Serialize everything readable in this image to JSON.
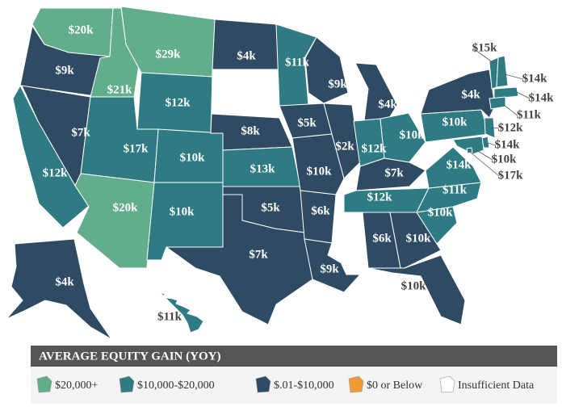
{
  "regions": [
    {
      "label": "$20k",
      "fill": 0
    },
    {
      "label": "$9k",
      "fill": 2
    },
    {
      "label": "$21k",
      "fill": 0
    },
    {
      "label": "$29k",
      "fill": 0
    },
    {
      "label": "$12k",
      "fill": 1
    },
    {
      "label": "$7k",
      "fill": 2
    },
    {
      "label": "$12k",
      "fill": 1
    },
    {
      "label": "$17k",
      "fill": 1
    },
    {
      "label": "$20k",
      "fill": 0
    },
    {
      "label": "$10k",
      "fill": 1
    },
    {
      "label": "$10k",
      "fill": 1
    },
    {
      "label": "$4k",
      "fill": 2
    },
    {
      "fill": 4
    },
    {
      "label": "$8k",
      "fill": 2
    },
    {
      "label": "$13k",
      "fill": 1
    },
    {
      "label": "$5k",
      "fill": 2
    },
    {
      "label": "$7k",
      "fill": 2
    },
    {
      "label": "$11k",
      "fill": 1
    },
    {
      "label": "$5k",
      "fill": 2
    },
    {
      "label": "$10k",
      "fill": 2
    },
    {
      "label": "$6k",
      "fill": 2
    },
    {
      "label": "$9k",
      "fill": 2
    },
    {
      "label": "$9k",
      "fill": 2
    },
    {
      "label": "$2k",
      "fill": 2
    },
    {
      "label": "$4k",
      "fill": 2
    },
    {
      "label": "$12k",
      "fill": 1
    },
    {
      "label": "$10k",
      "fill": 1
    },
    {
      "label": "$7k",
      "fill": 2
    },
    {
      "label": "$12k",
      "fill": 1
    },
    {
      "fill": 4
    },
    {
      "label": "$6k",
      "fill": 2
    },
    {
      "label": "$10k",
      "fill": 2
    },
    {
      "label": "$10k",
      "fill": 2
    },
    {
      "label": "$10k",
      "fill": 1
    },
    {
      "label": "$11k",
      "fill": 1
    },
    {
      "label": "$14k",
      "fill": 1
    },
    {
      "fill": 4
    },
    {
      "label": "$10k",
      "fill": 1
    },
    {
      "label": "$4k",
      "fill": 2
    },
    {
      "label": "$15k",
      "fill": 1
    },
    {
      "label": "$14k",
      "fill": 1
    },
    {
      "fill": 4
    },
    {
      "label": "$14k",
      "fill": 1
    },
    {
      "label": "$11k",
      "fill": 1
    },
    {
      "label": "$12k",
      "fill": 1
    },
    {
      "label": "$14k",
      "fill": 1
    },
    {
      "label": "$10k",
      "fill": 1
    },
    {
      "label": "$17k",
      "fill": 1
    },
    {
      "label": "$4k",
      "fill": 2
    },
    {
      "label": "$11k",
      "fill": 1
    }
  ],
  "legend": {
    "title": "AVERAGE EQUITY GAIN (YOY)",
    "items": [
      {
        "label": "$20,000+",
        "color": "#62ad8c"
      },
      {
        "label": "$10,000-$20,000",
        "color": "#2f7b83"
      },
      {
        "label": "$.01-$10,000",
        "color": "#2f4a63"
      },
      {
        "label": "$0 or Below",
        "color": "#f09a38"
      },
      {
        "label": "Insufficient Data",
        "color": "#ffffff"
      }
    ]
  }
}
